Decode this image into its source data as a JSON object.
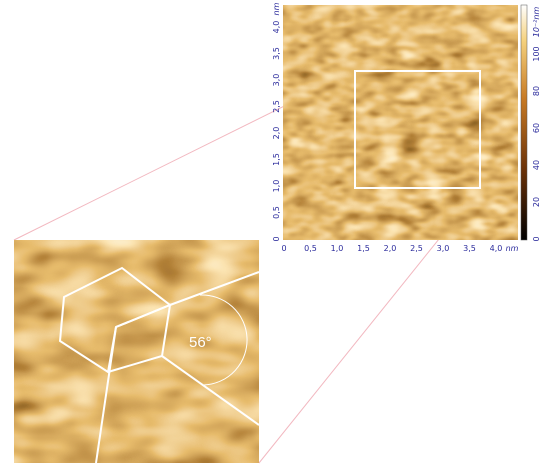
{
  "main_image": {
    "x_ticks": [
      "0",
      "0,5",
      "1,0",
      "1,5",
      "2,0",
      "2,5",
      "3,0",
      "3,5",
      "4,0"
    ],
    "x_unit": "nm",
    "y_ticks": [
      "0",
      "0,5",
      "1,0",
      "1,5",
      "2,0",
      "2,5",
      "3,0",
      "3,5",
      "4,0"
    ],
    "y_unit": "nm",
    "colorbar": {
      "ticks": [
        "0",
        "20",
        "40",
        "60",
        "80",
        "100"
      ],
      "unit": "10⁻²nm"
    }
  },
  "zoom_image": {
    "angle_label": "56°"
  }
}
